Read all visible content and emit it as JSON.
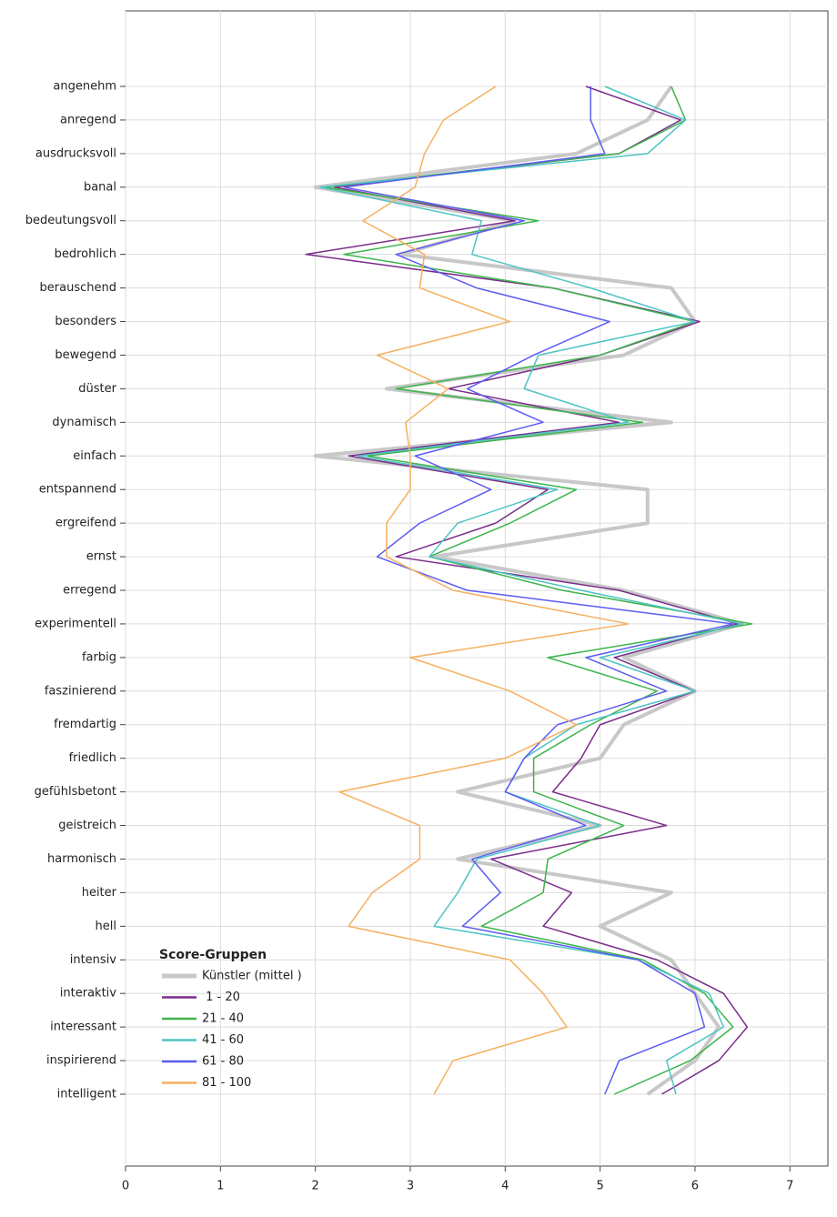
{
  "chart_data": {
    "type": "line",
    "orientation": "horizontal",
    "categories": [
      "angenehm",
      "anregend",
      "ausdrucksvoll",
      "banal",
      "bedeutungsvoll",
      "bedrohlich",
      "berauschend",
      "besonders",
      "bewegend",
      "düster",
      "dynamisch",
      "einfach",
      "entspannend",
      "ergreifend",
      "ernst",
      "erregend",
      "experimentell",
      "farbig",
      "faszinierend",
      "fremdartig",
      "friedlich",
      "gefühlsbetont",
      "geistreich",
      "harmonisch",
      "heiter",
      "hell",
      "intensiv",
      "interaktiv",
      "interessant",
      "inspirierend",
      "intelligent"
    ],
    "series": [
      {
        "name": "Künstler (mittel )",
        "color": "#c8c8c8",
        "width": 4,
        "values": [
          5.75,
          5.5,
          4.75,
          2.0,
          4.1,
          2.9,
          5.75,
          6.0,
          5.25,
          2.75,
          5.75,
          2.0,
          5.5,
          5.5,
          3.25,
          5.25,
          6.5,
          5.25,
          6.0,
          5.25,
          5.0,
          3.5,
          5.0,
          3.5,
          5.75,
          5.0,
          5.75,
          6.0,
          6.25,
          6.0,
          5.5
        ]
      },
      {
        "name": " 1 - 20",
        "color": "#7b2d8b",
        "width": 1.5,
        "values": [
          4.85,
          5.85,
          5.2,
          2.2,
          4.1,
          1.9,
          4.5,
          6.05,
          5.0,
          3.4,
          5.2,
          2.35,
          4.45,
          3.9,
          2.85,
          5.2,
          6.45,
          5.15,
          6.0,
          5.0,
          4.8,
          4.5,
          5.7,
          3.85,
          4.7,
          4.4,
          5.6,
          6.3,
          6.55,
          6.25,
          5.65
        ]
      },
      {
        "name": "21 - 40",
        "color": "#3cb44b",
        "width": 1.5,
        "values": [
          5.75,
          5.9,
          5.2,
          2.1,
          4.35,
          2.3,
          4.5,
          6.0,
          5.0,
          2.85,
          5.45,
          2.55,
          4.75,
          4.05,
          3.2,
          4.6,
          6.6,
          4.45,
          5.6,
          4.9,
          4.3,
          4.3,
          5.25,
          4.45,
          4.4,
          3.75,
          5.45,
          6.1,
          6.4,
          5.95,
          5.15
        ]
      },
      {
        "name": "41 - 60",
        "color": "#4dc4c4",
        "width": 1.5,
        "values": [
          5.05,
          5.9,
          5.5,
          2.05,
          3.75,
          3.65,
          4.9,
          6.0,
          4.35,
          4.2,
          5.3,
          2.45,
          4.55,
          3.5,
          3.2,
          4.8,
          6.5,
          5.0,
          6.0,
          4.75,
          4.2,
          4.0,
          5.0,
          3.7,
          3.5,
          3.25,
          5.4,
          6.15,
          6.3,
          5.7,
          5.8
        ]
      },
      {
        "name": "61 - 80",
        "color": "#5c5cf0",
        "width": 1.5,
        "values": [
          4.9,
          4.9,
          5.05,
          2.3,
          4.2,
          2.85,
          3.7,
          5.1,
          4.3,
          3.6,
          4.4,
          3.05,
          3.85,
          3.1,
          2.65,
          3.6,
          6.4,
          4.85,
          5.7,
          4.55,
          4.2,
          4.0,
          4.85,
          3.65,
          3.95,
          3.55,
          5.4,
          6.0,
          6.1,
          5.2,
          5.05
        ]
      },
      {
        "name": "81 - 100",
        "color": "#f5b060",
        "width": 1.5,
        "values": [
          3.9,
          3.35,
          3.15,
          3.05,
          2.5,
          3.15,
          3.1,
          4.05,
          2.65,
          3.4,
          2.95,
          3.0,
          3.0,
          2.75,
          2.75,
          3.45,
          5.3,
          3.0,
          4.05,
          4.75,
          4.0,
          2.25,
          3.1,
          3.1,
          2.6,
          2.35,
          4.05,
          4.4,
          4.65,
          3.45,
          3.25
        ]
      }
    ],
    "legend_title": "Score-Gruppen",
    "legend": "lower left",
    "xlim": [
      0,
      7.4
    ],
    "xticks": [
      0,
      1,
      2,
      3,
      4,
      5,
      6,
      7
    ],
    "grid": true
  }
}
